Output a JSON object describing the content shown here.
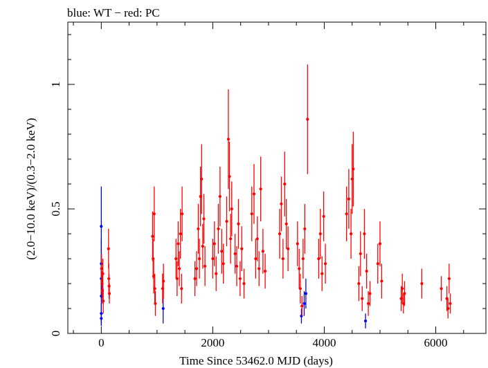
{
  "chart_data": {
    "type": "scatter",
    "title": "blue: WT − red: PC",
    "xlabel": "Time Since 53462.0 MJD (days)",
    "ylabel": "(2.0−10.0 keV)/(0.3−2.0 keV)",
    "xlim": [
      -600,
      6900
    ],
    "ylim": [
      0,
      1.25
    ],
    "x_ticks": [
      0,
      2000,
      4000,
      6000
    ],
    "x_tick_labels": [
      "0",
      "2000",
      "4000",
      "6000"
    ],
    "y_ticks": [
      0,
      0.5,
      1
    ],
    "y_tick_labels": [
      "0",
      "0.5",
      "1"
    ],
    "grid": false,
    "series": [
      {
        "name": "WT",
        "color": "#0000ff",
        "points": [
          {
            "x": 0,
            "y": 0.43,
            "err": 0.16
          },
          {
            "x": 0,
            "y": 0.28,
            "err": 0.1
          },
          {
            "x": 0,
            "y": 0.22,
            "err": 0.08
          },
          {
            "x": 0,
            "y": 0.15,
            "err": 0.06
          },
          {
            "x": 0,
            "y": 0.08,
            "err": 0.04
          },
          {
            "x": 0,
            "y": 0.06,
            "err": 0.03
          },
          {
            "x": 1110,
            "y": 0.1,
            "err": 0.06
          },
          {
            "x": 3590,
            "y": 0.07,
            "err": 0.03
          },
          {
            "x": 3640,
            "y": 0.12,
            "err": 0.05
          },
          {
            "x": 3670,
            "y": 0.16,
            "err": 0.06
          },
          {
            "x": 4740,
            "y": 0.05,
            "err": 0.03
          }
        ]
      },
      {
        "name": "PC",
        "color": "#ff0000",
        "points": [
          {
            "x": 5,
            "y": 0.26,
            "err": 0.06
          },
          {
            "x": 12,
            "y": 0.2,
            "err": 0.05
          },
          {
            "x": 20,
            "y": 0.17,
            "err": 0.05
          },
          {
            "x": 28,
            "y": 0.24,
            "err": 0.06
          },
          {
            "x": 35,
            "y": 0.13,
            "err": 0.05
          },
          {
            "x": 130,
            "y": 0.34,
            "err": 0.08
          },
          {
            "x": 135,
            "y": 0.22,
            "err": 0.06
          },
          {
            "x": 140,
            "y": 0.19,
            "err": 0.05
          },
          {
            "x": 145,
            "y": 0.16,
            "err": 0.04
          },
          {
            "x": 920,
            "y": 0.39,
            "err": 0.1
          },
          {
            "x": 930,
            "y": 0.3,
            "err": 0.08
          },
          {
            "x": 940,
            "y": 0.23,
            "err": 0.07
          },
          {
            "x": 950,
            "y": 0.48,
            "err": 0.11
          },
          {
            "x": 960,
            "y": 0.18,
            "err": 0.06
          },
          {
            "x": 970,
            "y": 0.12,
            "err": 0.05
          },
          {
            "x": 1100,
            "y": 0.18,
            "err": 0.06
          },
          {
            "x": 1115,
            "y": 0.21,
            "err": 0.07
          },
          {
            "x": 1340,
            "y": 0.3,
            "err": 0.08
          },
          {
            "x": 1360,
            "y": 0.22,
            "err": 0.07
          },
          {
            "x": 1380,
            "y": 0.36,
            "err": 0.09
          },
          {
            "x": 1400,
            "y": 0.26,
            "err": 0.07
          },
          {
            "x": 1420,
            "y": 0.4,
            "err": 0.1
          },
          {
            "x": 1440,
            "y": 0.18,
            "err": 0.06
          },
          {
            "x": 1450,
            "y": 0.48,
            "err": 0.11
          },
          {
            "x": 1680,
            "y": 0.22,
            "err": 0.07
          },
          {
            "x": 1710,
            "y": 0.26,
            "err": 0.07
          },
          {
            "x": 1740,
            "y": 0.42,
            "err": 0.1
          },
          {
            "x": 1760,
            "y": 0.3,
            "err": 0.08
          },
          {
            "x": 1780,
            "y": 0.55,
            "err": 0.12
          },
          {
            "x": 1800,
            "y": 0.62,
            "err": 0.14
          },
          {
            "x": 1820,
            "y": 0.35,
            "err": 0.09
          },
          {
            "x": 1840,
            "y": 0.46,
            "err": 0.1
          },
          {
            "x": 1860,
            "y": 0.27,
            "err": 0.08
          },
          {
            "x": 2000,
            "y": 0.3,
            "err": 0.08
          },
          {
            "x": 2030,
            "y": 0.36,
            "err": 0.09
          },
          {
            "x": 2060,
            "y": 0.24,
            "err": 0.07
          },
          {
            "x": 2100,
            "y": 0.42,
            "err": 0.1
          },
          {
            "x": 2130,
            "y": 0.55,
            "err": 0.12
          },
          {
            "x": 2160,
            "y": 0.33,
            "err": 0.09
          },
          {
            "x": 2190,
            "y": 0.28,
            "err": 0.08
          },
          {
            "x": 2250,
            "y": 0.45,
            "err": 0.1
          },
          {
            "x": 2280,
            "y": 0.78,
            "err": 0.2
          },
          {
            "x": 2300,
            "y": 0.63,
            "err": 0.14
          },
          {
            "x": 2320,
            "y": 0.38,
            "err": 0.1
          },
          {
            "x": 2340,
            "y": 0.5,
            "err": 0.11
          },
          {
            "x": 2400,
            "y": 0.32,
            "err": 0.08
          },
          {
            "x": 2430,
            "y": 0.27,
            "err": 0.08
          },
          {
            "x": 2460,
            "y": 0.44,
            "err": 0.1
          },
          {
            "x": 2490,
            "y": 0.22,
            "err": 0.07
          },
          {
            "x": 2520,
            "y": 0.34,
            "err": 0.09
          },
          {
            "x": 2560,
            "y": 0.2,
            "err": 0.06
          },
          {
            "x": 2700,
            "y": 0.48,
            "err": 0.11
          },
          {
            "x": 2740,
            "y": 0.56,
            "err": 0.12
          },
          {
            "x": 2770,
            "y": 0.3,
            "err": 0.08
          },
          {
            "x": 2800,
            "y": 0.38,
            "err": 0.09
          },
          {
            "x": 2830,
            "y": 0.26,
            "err": 0.07
          },
          {
            "x": 2860,
            "y": 0.58,
            "err": 0.13
          },
          {
            "x": 2900,
            "y": 0.33,
            "err": 0.09
          },
          {
            "x": 2940,
            "y": 0.25,
            "err": 0.07
          },
          {
            "x": 3200,
            "y": 0.4,
            "err": 0.1
          },
          {
            "x": 3230,
            "y": 0.52,
            "err": 0.11
          },
          {
            "x": 3260,
            "y": 0.3,
            "err": 0.08
          },
          {
            "x": 3290,
            "y": 0.6,
            "err": 0.13
          },
          {
            "x": 3320,
            "y": 0.44,
            "err": 0.1
          },
          {
            "x": 3350,
            "y": 0.34,
            "err": 0.09
          },
          {
            "x": 3520,
            "y": 0.36,
            "err": 0.09
          },
          {
            "x": 3550,
            "y": 0.26,
            "err": 0.08
          },
          {
            "x": 3570,
            "y": 0.18,
            "err": 0.06
          },
          {
            "x": 3600,
            "y": 0.11,
            "err": 0.04
          },
          {
            "x": 3620,
            "y": 0.3,
            "err": 0.08
          },
          {
            "x": 3650,
            "y": 0.42,
            "err": 0.1
          },
          {
            "x": 3700,
            "y": 0.86,
            "err": 0.22
          },
          {
            "x": 3900,
            "y": 0.3,
            "err": 0.08
          },
          {
            "x": 3930,
            "y": 0.4,
            "err": 0.1
          },
          {
            "x": 3960,
            "y": 0.24,
            "err": 0.07
          },
          {
            "x": 3990,
            "y": 0.47,
            "err": 0.1
          },
          {
            "x": 4020,
            "y": 0.28,
            "err": 0.08
          },
          {
            "x": 4400,
            "y": 0.48,
            "err": 0.11
          },
          {
            "x": 4440,
            "y": 0.54,
            "err": 0.12
          },
          {
            "x": 4480,
            "y": 0.4,
            "err": 0.1
          },
          {
            "x": 4500,
            "y": 0.62,
            "err": 0.14
          },
          {
            "x": 4520,
            "y": 0.66,
            "err": 0.15
          },
          {
            "x": 4620,
            "y": 0.2,
            "err": 0.07
          },
          {
            "x": 4650,
            "y": 0.32,
            "err": 0.09
          },
          {
            "x": 4680,
            "y": 0.14,
            "err": 0.05
          },
          {
            "x": 4720,
            "y": 0.4,
            "err": 0.1
          },
          {
            "x": 4760,
            "y": 0.25,
            "err": 0.07
          },
          {
            "x": 4790,
            "y": 0.12,
            "err": 0.05
          },
          {
            "x": 4820,
            "y": 0.16,
            "err": 0.05
          },
          {
            "x": 4960,
            "y": 0.28,
            "err": 0.08
          },
          {
            "x": 5000,
            "y": 0.36,
            "err": 0.09
          },
          {
            "x": 5030,
            "y": 0.21,
            "err": 0.07
          },
          {
            "x": 5380,
            "y": 0.14,
            "err": 0.05
          },
          {
            "x": 5400,
            "y": 0.18,
            "err": 0.06
          },
          {
            "x": 5420,
            "y": 0.12,
            "err": 0.04
          },
          {
            "x": 5440,
            "y": 0.16,
            "err": 0.05
          },
          {
            "x": 5750,
            "y": 0.2,
            "err": 0.06
          },
          {
            "x": 6100,
            "y": 0.18,
            "err": 0.05
          },
          {
            "x": 6200,
            "y": 0.14,
            "err": 0.05
          },
          {
            "x": 6220,
            "y": 0.1,
            "err": 0.04
          },
          {
            "x": 6240,
            "y": 0.22,
            "err": 0.06
          },
          {
            "x": 6260,
            "y": 0.12,
            "err": 0.04
          }
        ]
      }
    ]
  }
}
